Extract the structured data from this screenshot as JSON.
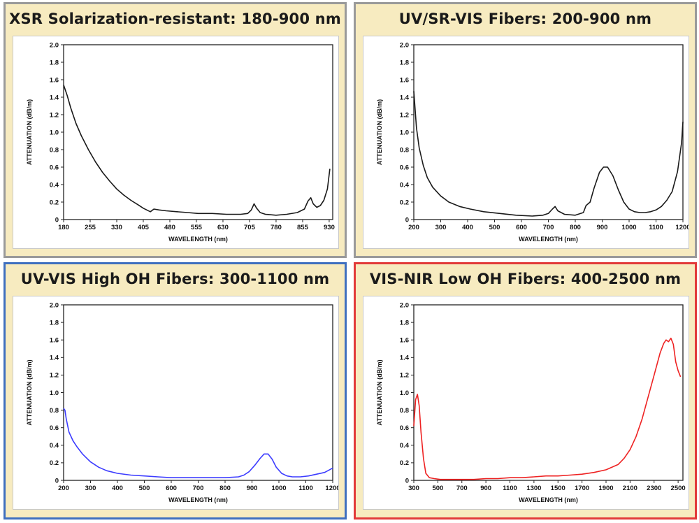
{
  "panels": [
    {
      "title": "XSR Solarization-resistant: 180-900 nm"
    },
    {
      "title": "UV/SR-VIS Fibers: 200-900 nm"
    },
    {
      "title": "UV-VIS High OH Fibers: 300-1100 nm"
    },
    {
      "title": "VIS-NIR Low OH Fibers: 400-2500 nm"
    }
  ],
  "chart_data": [
    {
      "type": "line",
      "title": "XSR Solarization-resistant: 180-900 nm",
      "xlabel": "WAVELENGTH (nm)",
      "ylabel": "ATTENUATION (dB/m)",
      "xlim": [
        180,
        940
      ],
      "ylim": [
        0,
        2.0
      ],
      "xticks": [
        180,
        255,
        330,
        405,
        480,
        555,
        630,
        705,
        780,
        855,
        930
      ],
      "yticks": [
        0,
        0.2,
        0.4,
        0.6,
        0.8,
        1.0,
        1.2,
        1.4,
        1.6,
        1.8,
        2.0
      ],
      "yticklabels": [
        "0",
        "0.2",
        "0.4",
        "0.6",
        "0.8",
        "1.0",
        "1.2",
        "1.4",
        "1.6",
        "1.8",
        "2.0"
      ],
      "color": "#1a1a1a",
      "grid": false,
      "series": [
        {
          "x": [
            180,
            190,
            200,
            215,
            230,
            250,
            270,
            290,
            310,
            330,
            350,
            370,
            390,
            405,
            415,
            425,
            435,
            450,
            470,
            500,
            530,
            560,
            600,
            640,
            680,
            700,
            710,
            718,
            725,
            735,
            750,
            780,
            810,
            840,
            860,
            870,
            878,
            885,
            895,
            905,
            915,
            925,
            932
          ],
          "y": [
            1.54,
            1.42,
            1.28,
            1.1,
            0.96,
            0.8,
            0.66,
            0.54,
            0.44,
            0.35,
            0.28,
            0.22,
            0.17,
            0.13,
            0.11,
            0.09,
            0.12,
            0.11,
            0.1,
            0.09,
            0.08,
            0.07,
            0.07,
            0.06,
            0.06,
            0.07,
            0.11,
            0.18,
            0.13,
            0.08,
            0.06,
            0.05,
            0.06,
            0.08,
            0.12,
            0.21,
            0.25,
            0.18,
            0.14,
            0.16,
            0.22,
            0.35,
            0.58
          ]
        }
      ]
    },
    {
      "type": "line",
      "title": "UV/SR-VIS Fibers: 200-900 nm",
      "xlabel": "WAVELENGTH (nm)",
      "ylabel": "ATTENUATION (dB/m)",
      "xlim": [
        200,
        1200
      ],
      "ylim": [
        0,
        2.0
      ],
      "xticks": [
        200,
        300,
        400,
        500,
        600,
        700,
        800,
        900,
        1000,
        1100,
        1200
      ],
      "yticks": [
        0,
        0.2,
        0.4,
        0.6,
        0.8,
        1.0,
        1.2,
        1.4,
        1.6,
        1.8,
        2.0
      ],
      "yticklabels": [
        "0",
        "0.2",
        "0.4",
        "0.6",
        "0.8",
        "1.0",
        "1.2",
        "1.4",
        "1.6",
        "1.8",
        "2.0"
      ],
      "color": "#1a1a1a",
      "grid": false,
      "series": [
        {
          "x": [
            200,
            210,
            220,
            235,
            250,
            270,
            300,
            330,
            370,
            410,
            460,
            520,
            580,
            640,
            680,
            700,
            715,
            725,
            735,
            760,
            800,
            830,
            840,
            855,
            870,
            890,
            905,
            920,
            940,
            960,
            980,
            1000,
            1020,
            1040,
            1060,
            1080,
            1100,
            1120,
            1140,
            1160,
            1180,
            1195,
            1200
          ],
          "y": [
            1.47,
            1.05,
            0.82,
            0.62,
            0.48,
            0.37,
            0.27,
            0.2,
            0.15,
            0.12,
            0.09,
            0.07,
            0.05,
            0.04,
            0.05,
            0.07,
            0.12,
            0.15,
            0.1,
            0.06,
            0.05,
            0.08,
            0.16,
            0.2,
            0.36,
            0.54,
            0.6,
            0.6,
            0.5,
            0.34,
            0.2,
            0.12,
            0.09,
            0.08,
            0.08,
            0.09,
            0.11,
            0.15,
            0.22,
            0.32,
            0.55,
            0.88,
            1.12
          ]
        }
      ]
    },
    {
      "type": "line",
      "title": "UV-VIS High OH Fibers: 300-1100 nm",
      "xlabel": "WAVELENGTH (nm)",
      "ylabel": "ATTENUATION (dB/m)",
      "xlim": [
        200,
        1200
      ],
      "ylim": [
        0,
        2.0
      ],
      "xticks": [
        200,
        300,
        400,
        500,
        600,
        700,
        800,
        900,
        1000,
        1100,
        1200
      ],
      "yticks": [
        0,
        0.2,
        0.4,
        0.6,
        0.8,
        1.0,
        1.2,
        1.4,
        1.6,
        1.8,
        2.0
      ],
      "yticklabels": [
        "0",
        "0.2",
        "0.4",
        "0.6",
        "0.8",
        "1.0",
        "1.2",
        "1.4",
        "1.6",
        "1.8",
        "2.0"
      ],
      "color": "#3c3cff",
      "grid": false,
      "series": [
        {
          "x": [
            200,
            205,
            210,
            220,
            235,
            250,
            270,
            300,
            330,
            360,
            400,
            450,
            500,
            550,
            600,
            650,
            700,
            750,
            800,
            850,
            870,
            890,
            910,
            930,
            945,
            960,
            975,
            990,
            1010,
            1030,
            1050,
            1080,
            1110,
            1140,
            1170,
            1200
          ],
          "y": [
            0.82,
            0.8,
            0.7,
            0.55,
            0.45,
            0.38,
            0.3,
            0.21,
            0.15,
            0.11,
            0.08,
            0.06,
            0.05,
            0.04,
            0.03,
            0.03,
            0.03,
            0.03,
            0.03,
            0.04,
            0.06,
            0.1,
            0.17,
            0.25,
            0.3,
            0.3,
            0.24,
            0.15,
            0.08,
            0.05,
            0.04,
            0.04,
            0.05,
            0.07,
            0.09,
            0.14
          ]
        }
      ]
    },
    {
      "type": "line",
      "title": "VIS-NIR Low OH Fibers: 400-2500 nm",
      "xlabel": "WAVELENGTH (nm)",
      "ylabel": "ATTENUATION (dB/m)",
      "xlim": [
        300,
        2540
      ],
      "ylim": [
        0,
        2.0
      ],
      "xticks": [
        300,
        500,
        700,
        900,
        1100,
        1300,
        1500,
        1700,
        1900,
        2100,
        2300,
        2500
      ],
      "yticks": [
        0,
        0.2,
        0.4,
        0.6,
        0.8,
        1.0,
        1.2,
        1.4,
        1.6,
        1.8,
        2.0
      ],
      "yticklabels": [
        "0",
        "0.2",
        "0.4",
        "0.6",
        "0.8",
        "1.0",
        "1.2",
        "1.4",
        "1.6",
        "1.8",
        "2.0"
      ],
      "color": "#ee2222",
      "grid": false,
      "series": [
        {
          "x": [
            300,
            315,
            330,
            345,
            360,
            380,
            400,
            430,
            470,
            520,
            600,
            700,
            800,
            900,
            1000,
            1100,
            1200,
            1300,
            1400,
            1500,
            1600,
            1700,
            1800,
            1900,
            2000,
            2050,
            2100,
            2150,
            2200,
            2250,
            2300,
            2350,
            2380,
            2400,
            2420,
            2440,
            2460,
            2480,
            2500,
            2520
          ],
          "y": [
            0.62,
            0.92,
            0.98,
            0.85,
            0.55,
            0.25,
            0.08,
            0.03,
            0.02,
            0.01,
            0.01,
            0.01,
            0.01,
            0.02,
            0.02,
            0.03,
            0.03,
            0.04,
            0.05,
            0.05,
            0.06,
            0.07,
            0.09,
            0.12,
            0.18,
            0.25,
            0.35,
            0.5,
            0.7,
            0.95,
            1.2,
            1.45,
            1.56,
            1.6,
            1.58,
            1.62,
            1.55,
            1.35,
            1.25,
            1.18
          ]
        }
      ]
    }
  ]
}
